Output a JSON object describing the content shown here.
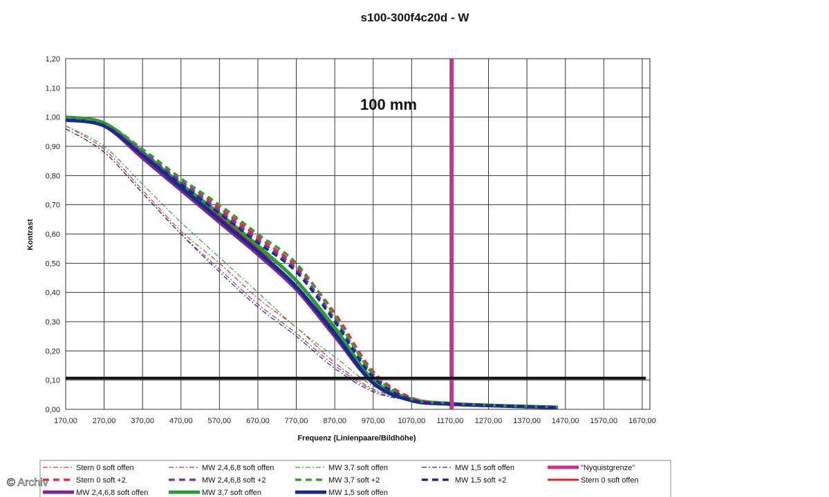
{
  "chart_data": {
    "type": "line",
    "title": "s100-300f4c20d - W",
    "xlabel": "Frequenz (Linienpaare/Bildhöhe)",
    "ylabel": "Kontrast",
    "xlim": [
      170,
      1690
    ],
    "ylim": [
      0,
      1.2
    ],
    "x_ticks": [
      "170,00",
      "270,00",
      "370,00",
      "470,00",
      "570,00",
      "670,00",
      "770,00",
      "870,00",
      "970,00",
      "1070,00",
      "1170,00",
      "1270,00",
      "1370,00",
      "1470,00",
      "1570,00",
      "1670,00"
    ],
    "y_ticks": [
      "0,00",
      "0,10",
      "0,20",
      "0,30",
      "0,40",
      "0,50",
      "0,60",
      "0,70",
      "0,80",
      "0,90",
      "1,00",
      "1,10",
      "1,20"
    ],
    "grid": true,
    "annotation": "100 mm",
    "nyquist_x": 1175,
    "threshold_y": 0.107,
    "legend_position": "bottom",
    "copyright": "© Archiv",
    "series": [
      {
        "name": "Stern 0 soft offen",
        "style": "dashdot",
        "color": "#e0303a",
        "width": 1.2,
        "x": [
          170,
          270,
          370,
          470,
          570,
          670,
          770,
          870,
          970,
          1070,
          1170,
          1270,
          1370,
          1450
        ],
        "y": [
          0.97,
          0.89,
          0.75,
          0.61,
          0.5,
          0.38,
          0.28,
          0.16,
          0.07,
          0.035,
          0.02,
          0.012,
          0.008,
          0.005
        ]
      },
      {
        "name": "MW 2,4,6,8 soft offen",
        "style": "dashdot",
        "color": "#7a3a9a",
        "width": 1.2,
        "x": [
          170,
          270,
          370,
          470,
          570,
          670,
          770,
          870,
          970,
          1070,
          1170,
          1270,
          1370,
          1450
        ],
        "y": [
          0.96,
          0.88,
          0.74,
          0.6,
          0.48,
          0.36,
          0.26,
          0.15,
          0.065,
          0.03,
          0.018,
          0.012,
          0.008,
          0.005
        ]
      },
      {
        "name": "MW 3,7 soft offen",
        "style": "dashdot",
        "color": "#3a9a3a",
        "width": 1.2,
        "x": [
          170,
          270,
          370,
          470,
          570,
          670,
          770,
          870,
          970,
          1070,
          1170,
          1270,
          1370,
          1450
        ],
        "y": [
          0.97,
          0.9,
          0.77,
          0.64,
          0.52,
          0.4,
          0.28,
          0.18,
          0.08,
          0.035,
          0.02,
          0.012,
          0.008,
          0.005
        ]
      },
      {
        "name": "MW 1,5 soft offen",
        "style": "dashdot",
        "color": "#1a2a7a",
        "width": 1.2,
        "x": [
          170,
          270,
          370,
          470,
          570,
          670,
          770,
          870,
          970,
          1070,
          1170,
          1270,
          1370,
          1450
        ],
        "y": [
          0.96,
          0.88,
          0.74,
          0.6,
          0.47,
          0.35,
          0.25,
          0.14,
          0.06,
          0.03,
          0.018,
          0.012,
          0.008,
          0.005
        ]
      },
      {
        "name": "\"Nyquistgrenze\"",
        "style": "solid",
        "color": "#d0308a",
        "width": 5,
        "x": [],
        "y": []
      },
      {
        "name": "Stern 0 soft +2",
        "style": "dashed",
        "color": "#e0303a",
        "width": 3.5,
        "x": [
          170,
          270,
          370,
          470,
          570,
          670,
          770,
          870,
          970,
          1070,
          1170,
          1270,
          1370,
          1450
        ],
        "y": [
          1.0,
          0.98,
          0.89,
          0.79,
          0.69,
          0.59,
          0.49,
          0.33,
          0.13,
          0.04,
          0.022,
          0.015,
          0.01,
          0.007
        ]
      },
      {
        "name": "MW 2,4,6,8 soft +2",
        "style": "dashed",
        "color": "#7a3a9a",
        "width": 3.5,
        "x": [
          170,
          270,
          370,
          470,
          570,
          670,
          770,
          870,
          970,
          1070,
          1170,
          1270,
          1370,
          1450
        ],
        "y": [
          1.0,
          0.97,
          0.88,
          0.78,
          0.68,
          0.58,
          0.48,
          0.31,
          0.12,
          0.035,
          0.02,
          0.014,
          0.01,
          0.007
        ]
      },
      {
        "name": "MW 3,7 soft +2",
        "style": "dashed",
        "color": "#3a9a3a",
        "width": 3.5,
        "x": [
          170,
          270,
          370,
          470,
          570,
          670,
          770,
          870,
          970,
          1070,
          1170,
          1270,
          1370,
          1450
        ],
        "y": [
          1.0,
          0.98,
          0.89,
          0.79,
          0.7,
          0.6,
          0.5,
          0.32,
          0.12,
          0.035,
          0.021,
          0.014,
          0.01,
          0.007
        ]
      },
      {
        "name": "MW 1,5 soft +2",
        "style": "dashed",
        "color": "#1a2a8a",
        "width": 3.5,
        "x": [
          170,
          270,
          370,
          470,
          570,
          670,
          770,
          870,
          970,
          1070,
          1170,
          1270,
          1370,
          1450
        ],
        "y": [
          0.99,
          0.97,
          0.87,
          0.77,
          0.67,
          0.57,
          0.47,
          0.3,
          0.11,
          0.033,
          0.02,
          0.014,
          0.01,
          0.007
        ]
      },
      {
        "name": "Stern 0 soft offen",
        "style": "solid",
        "color": "#d02828",
        "width": 3,
        "x": [
          170,
          270,
          370,
          470,
          570,
          670,
          770,
          870,
          970,
          1070,
          1170,
          1270,
          1370,
          1450
        ],
        "y": [
          1.0,
          0.98,
          0.88,
          0.77,
          0.66,
          0.55,
          0.44,
          0.27,
          0.1,
          0.035,
          0.02,
          0.014,
          0.01,
          0.007
        ]
      },
      {
        "name": "MW 2,4,6,8 soft offen",
        "style": "solid",
        "color": "#7a2a90",
        "width": 5,
        "x": [
          170,
          270,
          370,
          470,
          570,
          670,
          770,
          870,
          970,
          1070,
          1170,
          1270,
          1370,
          1450
        ],
        "y": [
          0.99,
          0.97,
          0.86,
          0.75,
          0.64,
          0.53,
          0.41,
          0.25,
          0.09,
          0.03,
          0.018,
          0.013,
          0.009,
          0.006
        ]
      },
      {
        "name": "MW 3,7 soft offen",
        "style": "solid",
        "color": "#2a9a3a",
        "width": 5,
        "x": [
          170,
          270,
          370,
          470,
          570,
          670,
          770,
          870,
          970,
          1070,
          1170,
          1270,
          1370,
          1450
        ],
        "y": [
          1.0,
          0.98,
          0.88,
          0.77,
          0.67,
          0.56,
          0.44,
          0.28,
          0.1,
          0.035,
          0.02,
          0.014,
          0.01,
          0.007
        ]
      },
      {
        "name": "MW 1,5 soft offen",
        "style": "solid",
        "color": "#1a2a8a",
        "width": 5,
        "x": [
          170,
          270,
          370,
          470,
          570,
          670,
          770,
          870,
          970,
          1070,
          1170,
          1270,
          1370,
          1450
        ],
        "y": [
          0.99,
          0.97,
          0.87,
          0.76,
          0.65,
          0.54,
          0.42,
          0.26,
          0.09,
          0.03,
          0.018,
          0.013,
          0.009,
          0.006
        ]
      }
    ]
  }
}
